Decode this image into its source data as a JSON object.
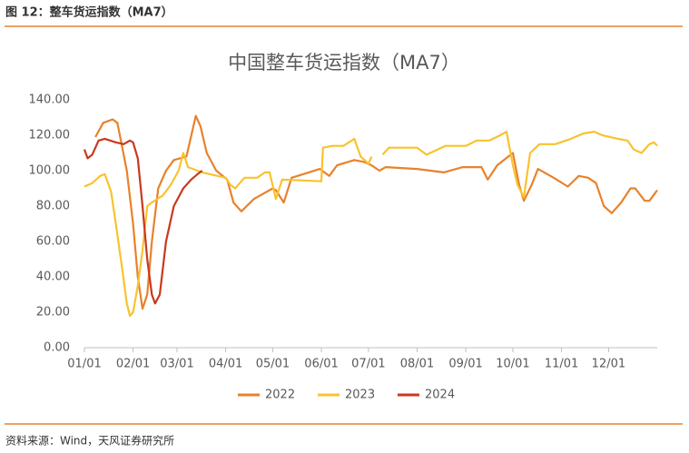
{
  "header": {
    "title": "图 12：整车货运指数（MA7）"
  },
  "footer": {
    "source": "资料来源：Wind，天风证券研究所"
  },
  "chart_data": {
    "type": "line",
    "title": "中国整车货运指数（MA7）",
    "xlim": [
      0,
      365
    ],
    "xticks": [
      {
        "value": 0,
        "label": "01/01"
      },
      {
        "value": 31,
        "label": "02/01"
      },
      {
        "value": 59,
        "label": "03/01"
      },
      {
        "value": 90,
        "label": "04/01"
      },
      {
        "value": 120,
        "label": "05/01"
      },
      {
        "value": 151,
        "label": "06/01"
      },
      {
        "value": 181,
        "label": "07/01"
      },
      {
        "value": 212,
        "label": "08/01"
      },
      {
        "value": 243,
        "label": "09/01"
      },
      {
        "value": 273,
        "label": "10/01"
      },
      {
        "value": 304,
        "label": "11/01"
      },
      {
        "value": 334,
        "label": "12/01"
      }
    ],
    "ylim": [
      0,
      140
    ],
    "yticks": [
      {
        "value": 0,
        "label": "0.00"
      },
      {
        "value": 20,
        "label": "20.00"
      },
      {
        "value": 40,
        "label": "40.00"
      },
      {
        "value": 60,
        "label": "60.00"
      },
      {
        "value": 80,
        "label": "80.00"
      },
      {
        "value": 100,
        "label": "100.00"
      },
      {
        "value": 120,
        "label": "120.00"
      },
      {
        "value": 140,
        "label": "140.00"
      }
    ],
    "legend": "bottom",
    "series": [
      {
        "name": "2022",
        "color": "#E8822B",
        "x": [
          7,
          12,
          18,
          21,
          27,
          31,
          34,
          37,
          40,
          43,
          47,
          52,
          57,
          65,
          71,
          74,
          78,
          84,
          91,
          95,
          100,
          108,
          120,
          122,
          127,
          132,
          143,
          150,
          156,
          161,
          172,
          178,
          183,
          188,
          192,
          212,
          229,
          241,
          253,
          257,
          263,
          273,
          277,
          280,
          285,
          289,
          299,
          308,
          315,
          321,
          326,
          331,
          336,
          342,
          348,
          351,
          357,
          360,
          365
        ],
        "values": [
          119,
          127,
          129,
          127,
          100,
          70,
          40,
          22,
          30,
          60,
          90,
          100,
          106,
          108,
          131,
          125,
          110,
          100,
          95,
          82,
          77,
          84,
          90,
          89,
          82,
          96,
          99,
          101,
          97,
          103,
          106,
          105,
          103,
          100,
          102,
          101,
          99,
          102,
          102,
          95,
          103,
          110,
          92,
          83,
          92,
          101,
          96,
          91,
          97,
          96,
          93,
          80,
          76,
          82,
          90,
          90,
          83,
          83,
          89
        ]
      },
      {
        "name": "2023",
        "color": "#F9C22E",
        "x": [
          0,
          5,
          10,
          13,
          17,
          20,
          24,
          27,
          29,
          31,
          34,
          37,
          40,
          43,
          50,
          55,
          60,
          63,
          66,
          75,
          85,
          90,
          93,
          96,
          102,
          110,
          115,
          118,
          122,
          126,
          151,
          152,
          158,
          165,
          172,
          176,
          181,
          183,
          186,
          190,
          194,
          205,
          212,
          218,
          230,
          243,
          250,
          258,
          265,
          269,
          273,
          276,
          280,
          284,
          290,
          300,
          310,
          318,
          325,
          330,
          340,
          346,
          350,
          355,
          360,
          363,
          365
        ],
        "values": [
          91,
          93,
          97,
          98,
          88,
          70,
          45,
          25,
          18,
          20,
          35,
          55,
          80,
          82,
          86,
          92,
          100,
          110,
          102,
          99,
          97,
          96,
          92,
          90,
          96,
          96,
          99,
          99,
          84,
          95,
          94,
          113,
          114,
          114,
          118,
          108,
          104,
          108,
          null,
          109,
          113,
          113,
          113,
          109,
          114,
          114,
          117,
          117,
          120,
          122,
          103,
          92,
          85,
          110,
          115,
          115,
          118,
          121,
          122,
          120,
          118,
          117,
          112,
          110,
          115,
          116,
          114
        ]
      },
      {
        "name": "2024",
        "color": "#C8391E",
        "x": [
          0,
          2,
          5,
          9,
          13,
          20,
          25,
          29,
          31,
          34,
          37,
          40,
          43,
          45,
          48,
          52,
          57,
          63,
          68,
          72,
          75
        ],
        "values": [
          112,
          107,
          109,
          117,
          118,
          116,
          115,
          117,
          116,
          107,
          80,
          50,
          30,
          25,
          30,
          60,
          80,
          90,
          95,
          98,
          100
        ]
      }
    ]
  }
}
